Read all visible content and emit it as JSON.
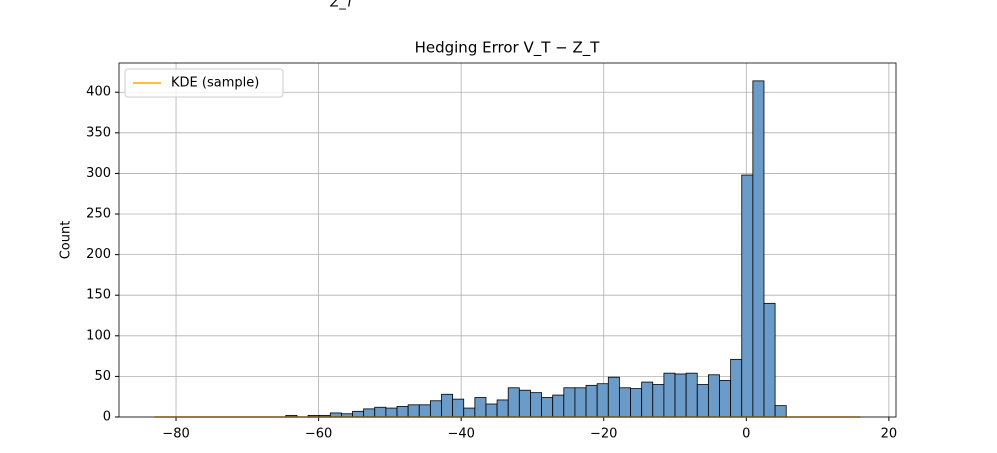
{
  "chart_data": {
    "type": "histogram",
    "fragment": "Z_T",
    "title": "Hedging Error V_T − Z_T",
    "ylabel": "Count",
    "bins": [
      -64.6,
      -63.04,
      -61.48,
      -59.92,
      -58.36,
      -56.8,
      -55.24,
      -53.68,
      -52.12,
      -50.56,
      -49,
      -47.44,
      -45.88,
      -44.32,
      -42.76,
      -41.2,
      -39.64,
      -38.08,
      -36.52,
      -34.96,
      -33.4,
      -31.84,
      -30.28,
      -28.72,
      -27.16,
      -25.6,
      -24.04,
      -22.48,
      -20.92,
      -19.36,
      -17.8,
      -16.24,
      -14.68,
      -13.12,
      -11.56,
      -10,
      -8.44,
      -6.88,
      -5.32,
      -3.76,
      -2.2,
      -0.64,
      0.92,
      2.48,
      4.04,
      5.6
    ],
    "values": [
      2,
      0,
      2,
      2,
      5,
      4,
      7,
      10,
      12,
      11,
      13,
      15,
      15,
      20,
      28,
      22,
      11,
      24,
      16,
      21,
      36,
      33,
      30,
      24,
      27,
      36,
      36,
      39,
      41,
      49,
      36,
      35,
      43,
      40,
      54,
      53,
      54,
      40,
      52,
      45,
      71,
      298,
      414,
      140,
      14
    ],
    "color": "#6b9bc8",
    "series": [
      {
        "name": "KDE (sample)",
        "color": "orange",
        "x": [
          -83,
          16
        ],
        "values": [
          0,
          0
        ]
      }
    ],
    "xlim": [
      -88,
      21
    ],
    "ylim": [
      0,
      436
    ],
    "xticks": [
      {
        "value": -80,
        "label": "−80"
      },
      {
        "value": -60,
        "label": "−60"
      },
      {
        "value": -40,
        "label": "−40"
      },
      {
        "value": -20,
        "label": "−20"
      },
      0,
      20
    ],
    "yticks": [
      0,
      50,
      100,
      150,
      200,
      250,
      300,
      350,
      400
    ],
    "grid": true,
    "legend": "upper left"
  }
}
